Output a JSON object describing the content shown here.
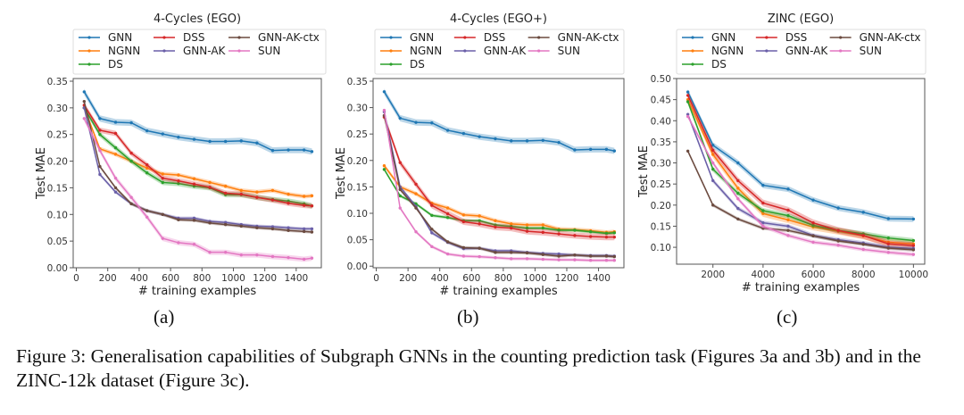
{
  "figure": {
    "caption": "Figure 3: Generalisation capabilities of Subgraph GNNs in the counting prediction task (Figures 3a and 3b) and in the ZINC-12k dataset (Figure 3c).",
    "sublabels": [
      "(a)",
      "(b)",
      "(c)"
    ]
  },
  "legend": {
    "entries": [
      {
        "name": "GNN",
        "color": "#1f77b4"
      },
      {
        "name": "NGNN",
        "color": "#ff7f0e"
      },
      {
        "name": "DS",
        "color": "#2ca02c"
      },
      {
        "name": "DSS",
        "color": "#d62728"
      },
      {
        "name": "GNN-AK",
        "color": "#6a5fa8"
      },
      {
        "name": "GNN-AK-ctx",
        "color": "#6b4a3f"
      },
      {
        "name": "SUN",
        "color": "#e377c2"
      }
    ]
  },
  "chart_data": [
    {
      "type": "line",
      "title": "4-Cycles (EGO)",
      "xlabel": "# training examples",
      "ylabel": "Test MAE",
      "xlim": [
        -20,
        1560
      ],
      "ylim": [
        0.0,
        0.355
      ],
      "xticks": [
        0,
        200,
        400,
        600,
        800,
        1000,
        1200,
        1400
      ],
      "yticks": [
        0.0,
        0.05,
        0.1,
        0.15,
        0.2,
        0.25,
        0.3,
        0.35
      ],
      "ytick_labels": [
        "0.00",
        "0.05",
        "0.10",
        "0.15",
        "0.20",
        "0.25",
        "0.30",
        "0.35"
      ],
      "legend_location": "top",
      "grid": false,
      "x": [
        50,
        150,
        250,
        350,
        450,
        550,
        650,
        750,
        850,
        950,
        1050,
        1150,
        1250,
        1350,
        1450,
        1500
      ],
      "series": [
        {
          "name": "GNN",
          "values": [
            0.33,
            0.28,
            0.273,
            0.272,
            0.257,
            0.251,
            0.245,
            0.241,
            0.237,
            0.237,
            0.238,
            0.234,
            0.22,
            0.221,
            0.221,
            0.218
          ],
          "band": 0.006
        },
        {
          "name": "NGNN",
          "values": [
            0.3,
            0.223,
            0.213,
            0.2,
            0.187,
            0.176,
            0.174,
            0.167,
            0.16,
            0.153,
            0.145,
            0.142,
            0.145,
            0.138,
            0.134,
            0.135
          ],
          "band": 0.004
        },
        {
          "name": "DS",
          "values": [
            0.3,
            0.25,
            0.225,
            0.2,
            0.178,
            0.16,
            0.158,
            0.153,
            0.15,
            0.137,
            0.137,
            0.132,
            0.128,
            0.125,
            0.12,
            0.116
          ],
          "band": 0.005
        },
        {
          "name": "DSS",
          "values": [
            0.305,
            0.258,
            0.252,
            0.215,
            0.193,
            0.168,
            0.163,
            0.157,
            0.151,
            0.14,
            0.138,
            0.132,
            0.127,
            0.121,
            0.117,
            0.116
          ],
          "band": 0.005
        },
        {
          "name": "GNN-AK",
          "values": [
            0.3,
            0.175,
            0.142,
            0.12,
            0.107,
            0.1,
            0.093,
            0.093,
            0.087,
            0.085,
            0.081,
            0.078,
            0.077,
            0.075,
            0.073,
            0.073
          ],
          "band": 0.003
        },
        {
          "name": "GNN-AK-ctx",
          "values": [
            0.312,
            0.19,
            0.15,
            0.12,
            0.107,
            0.1,
            0.09,
            0.089,
            0.084,
            0.081,
            0.078,
            0.075,
            0.073,
            0.07,
            0.068,
            0.067
          ],
          "band": 0.003
        },
        {
          "name": "SUN",
          "values": [
            0.28,
            0.22,
            0.168,
            0.132,
            0.095,
            0.055,
            0.047,
            0.044,
            0.029,
            0.029,
            0.024,
            0.024,
            0.021,
            0.019,
            0.016,
            0.018
          ],
          "band": 0.005
        }
      ]
    },
    {
      "type": "line",
      "title": "4-Cycles (EGO+)",
      "xlabel": "# training examples",
      "ylabel": "Test MAE",
      "xlim": [
        -20,
        1560
      ],
      "ylim": [
        -0.003,
        0.355
      ],
      "xticks": [
        0,
        200,
        400,
        600,
        800,
        1000,
        1200,
        1400
      ],
      "yticks": [
        0.0,
        0.05,
        0.1,
        0.15,
        0.2,
        0.25,
        0.3,
        0.35
      ],
      "ytick_labels": [
        "0.00",
        "0.05",
        "0.10",
        "0.15",
        "0.20",
        "0.25",
        "0.30",
        "0.35"
      ],
      "legend_location": "top",
      "grid": false,
      "x": [
        50,
        150,
        250,
        350,
        450,
        550,
        650,
        750,
        850,
        950,
        1050,
        1150,
        1250,
        1350,
        1450,
        1500
      ],
      "series": [
        {
          "name": "GNN",
          "values": [
            0.33,
            0.28,
            0.272,
            0.271,
            0.257,
            0.251,
            0.245,
            0.241,
            0.237,
            0.237,
            0.238,
            0.234,
            0.22,
            0.221,
            0.221,
            0.218
          ],
          "band": 0.006
        },
        {
          "name": "NGNN",
          "values": [
            0.19,
            0.15,
            0.137,
            0.119,
            0.11,
            0.097,
            0.095,
            0.086,
            0.08,
            0.078,
            0.078,
            0.07,
            0.069,
            0.067,
            0.064,
            0.065
          ],
          "band": 0.004
        },
        {
          "name": "DS",
          "values": [
            0.183,
            0.133,
            0.118,
            0.096,
            0.092,
            0.086,
            0.086,
            0.078,
            0.075,
            0.072,
            0.072,
            0.068,
            0.068,
            0.065,
            0.062,
            0.063
          ],
          "band": 0.003
        },
        {
          "name": "DSS",
          "values": [
            0.282,
            0.196,
            0.155,
            0.115,
            0.099,
            0.084,
            0.08,
            0.074,
            0.072,
            0.066,
            0.064,
            0.061,
            0.058,
            0.056,
            0.055,
            0.055
          ],
          "band": 0.006
        },
        {
          "name": "GNN-AK",
          "values": [
            0.292,
            0.15,
            0.113,
            0.063,
            0.045,
            0.033,
            0.034,
            0.029,
            0.029,
            0.026,
            0.024,
            0.023,
            0.021,
            0.02,
            0.02,
            0.019
          ],
          "band": 0.003
        },
        {
          "name": "GNN-AK-ctx",
          "values": [
            0.285,
            0.145,
            0.11,
            0.07,
            0.046,
            0.035,
            0.034,
            0.026,
            0.026,
            0.025,
            0.022,
            0.019,
            0.021,
            0.019,
            0.019,
            0.018
          ],
          "band": 0.003
        },
        {
          "name": "SUN",
          "values": [
            0.295,
            0.11,
            0.065,
            0.037,
            0.023,
            0.019,
            0.018,
            0.016,
            0.014,
            0.014,
            0.013,
            0.012,
            0.012,
            0.011,
            0.011,
            0.011
          ],
          "band": 0.003
        }
      ]
    },
    {
      "type": "line",
      "title": "ZINC (EGO)",
      "xlabel": "# training examples",
      "ylabel": "Test MAE",
      "xlim": [
        550,
        10450
      ],
      "ylim": [
        0.06,
        0.5
      ],
      "xticks": [
        2000,
        4000,
        6000,
        8000,
        10000
      ],
      "yticks": [
        0.1,
        0.15,
        0.2,
        0.25,
        0.3,
        0.35,
        0.4,
        0.45,
        0.5
      ],
      "ytick_labels": [
        "0.10",
        "0.15",
        "0.20",
        "0.25",
        "0.30",
        "0.35",
        "0.40",
        "0.45",
        "0.50"
      ],
      "legend_location": "top",
      "grid": false,
      "x": [
        1000,
        2000,
        3000,
        4000,
        5000,
        6000,
        7000,
        8000,
        9000,
        10000
      ],
      "series": [
        {
          "name": "GNN",
          "values": [
            0.468,
            0.342,
            0.3,
            0.247,
            0.238,
            0.212,
            0.193,
            0.183,
            0.168,
            0.167
          ],
          "band": 0.007
        },
        {
          "name": "NGNN",
          "values": [
            0.45,
            0.32,
            0.24,
            0.18,
            0.165,
            0.148,
            0.138,
            0.127,
            0.112,
            0.108
          ],
          "band": 0.008
        },
        {
          "name": "DS",
          "values": [
            0.445,
            0.285,
            0.228,
            0.187,
            0.175,
            0.152,
            0.14,
            0.132,
            0.122,
            0.116
          ],
          "band": 0.006
        },
        {
          "name": "DSS",
          "values": [
            0.46,
            0.33,
            0.258,
            0.205,
            0.188,
            0.158,
            0.14,
            0.128,
            0.108,
            0.104
          ],
          "band": 0.008
        },
        {
          "name": "GNN-AK",
          "values": [
            0.415,
            0.258,
            0.192,
            0.158,
            0.15,
            0.128,
            0.118,
            0.11,
            0.1,
            0.097
          ],
          "band": 0.005
        },
        {
          "name": "GNN-AK-ctx",
          "values": [
            0.328,
            0.2,
            0.167,
            0.145,
            0.14,
            0.127,
            0.115,
            0.107,
            0.098,
            0.094
          ],
          "band": 0.004
        },
        {
          "name": "SUN",
          "values": [
            0.41,
            0.3,
            0.215,
            0.15,
            0.128,
            0.112,
            0.105,
            0.095,
            0.088,
            0.083
          ],
          "band": 0.005
        }
      ]
    }
  ]
}
